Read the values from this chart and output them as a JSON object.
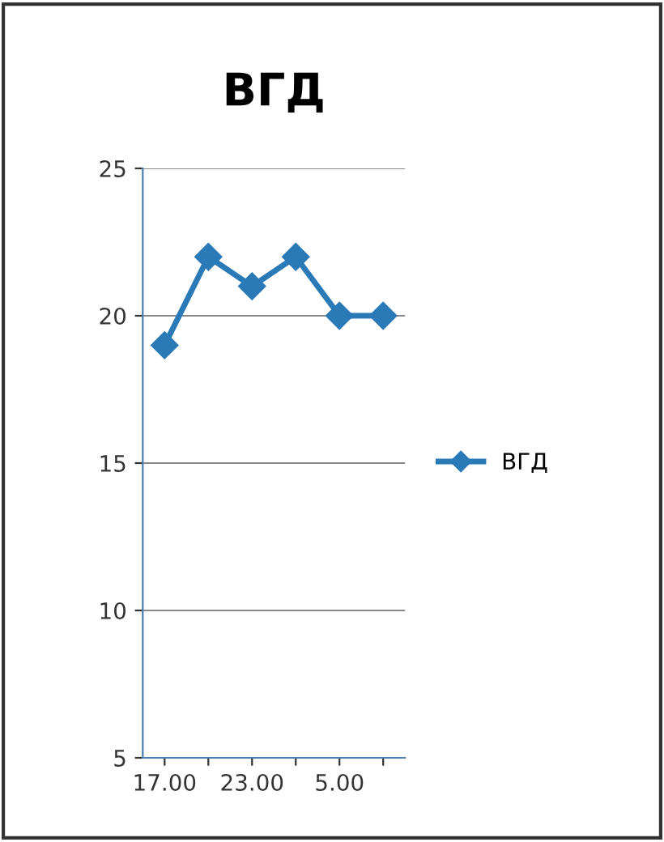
{
  "chart_data": {
    "type": "line",
    "title": "ВГД",
    "categories": [
      "17.00",
      null,
      "23.00",
      null,
      "5.00",
      null
    ],
    "series": [
      {
        "name": "ВГД",
        "color": "#2a7ab8",
        "values": [
          19,
          22,
          21,
          22,
          20,
          20
        ]
      }
    ],
    "ylim": [
      5,
      25
    ],
    "yticks": [
      5,
      10,
      15,
      20,
      25
    ],
    "grid": "y",
    "legend": "right",
    "marker": "diamond",
    "line_style": "solid"
  }
}
